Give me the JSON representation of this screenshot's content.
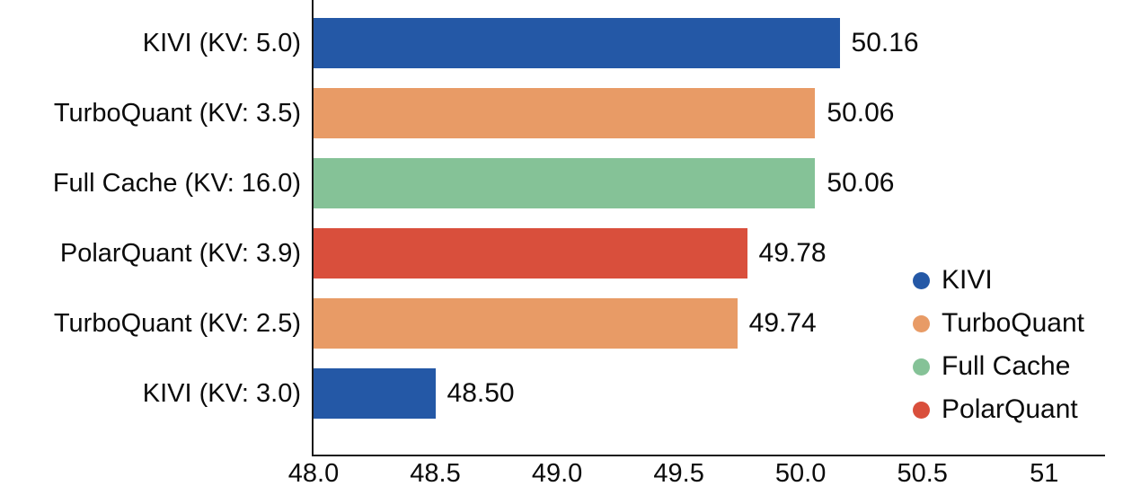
{
  "chart_data": {
    "type": "bar",
    "orientation": "horizontal",
    "title": "",
    "xlabel": "",
    "ylabel": "",
    "categories": [
      "KIVI (KV: 5.0)",
      "TurboQuant (KV: 3.5)",
      "Full Cache (KV: 16.0)",
      "PolarQuant (KV: 3.9)",
      "TurboQuant (KV: 2.5)",
      "KIVI (KV: 3.0)"
    ],
    "values": [
      50.16,
      50.06,
      50.06,
      49.78,
      49.74,
      48.5
    ],
    "value_labels": [
      "50.16",
      "50.06",
      "50.06",
      "49.78",
      "49.74",
      "48.50"
    ],
    "bar_series": [
      "KIVI",
      "TurboQuant",
      "Full Cache",
      "PolarQuant",
      "TurboQuant",
      "KIVI"
    ],
    "series_colors": {
      "KIVI": "#2458A6",
      "TurboQuant": "#E89B66",
      "Full Cache": "#85C297",
      "PolarQuant": "#D94F3C"
    },
    "legend": [
      {
        "label": "KIVI",
        "color": "#2458A6"
      },
      {
        "label": "TurboQuant",
        "color": "#E89B66"
      },
      {
        "label": "Full Cache",
        "color": "#85C297"
      },
      {
        "label": "PolarQuant",
        "color": "#D94F3C"
      }
    ],
    "legend_position": "right-center",
    "xlim": [
      48.0,
      51.25
    ],
    "xticks": [
      48.0,
      48.5,
      49.0,
      49.5,
      50.0,
      50.5,
      51.0
    ],
    "xtick_labels": [
      "48.0",
      "48.5",
      "49.0",
      "49.5",
      "50.0",
      "50.5",
      "51"
    ],
    "grid": false
  },
  "colors": {
    "background": "#ffffff",
    "axis": "#1a1a1a",
    "text": "#0b0b0b"
  }
}
